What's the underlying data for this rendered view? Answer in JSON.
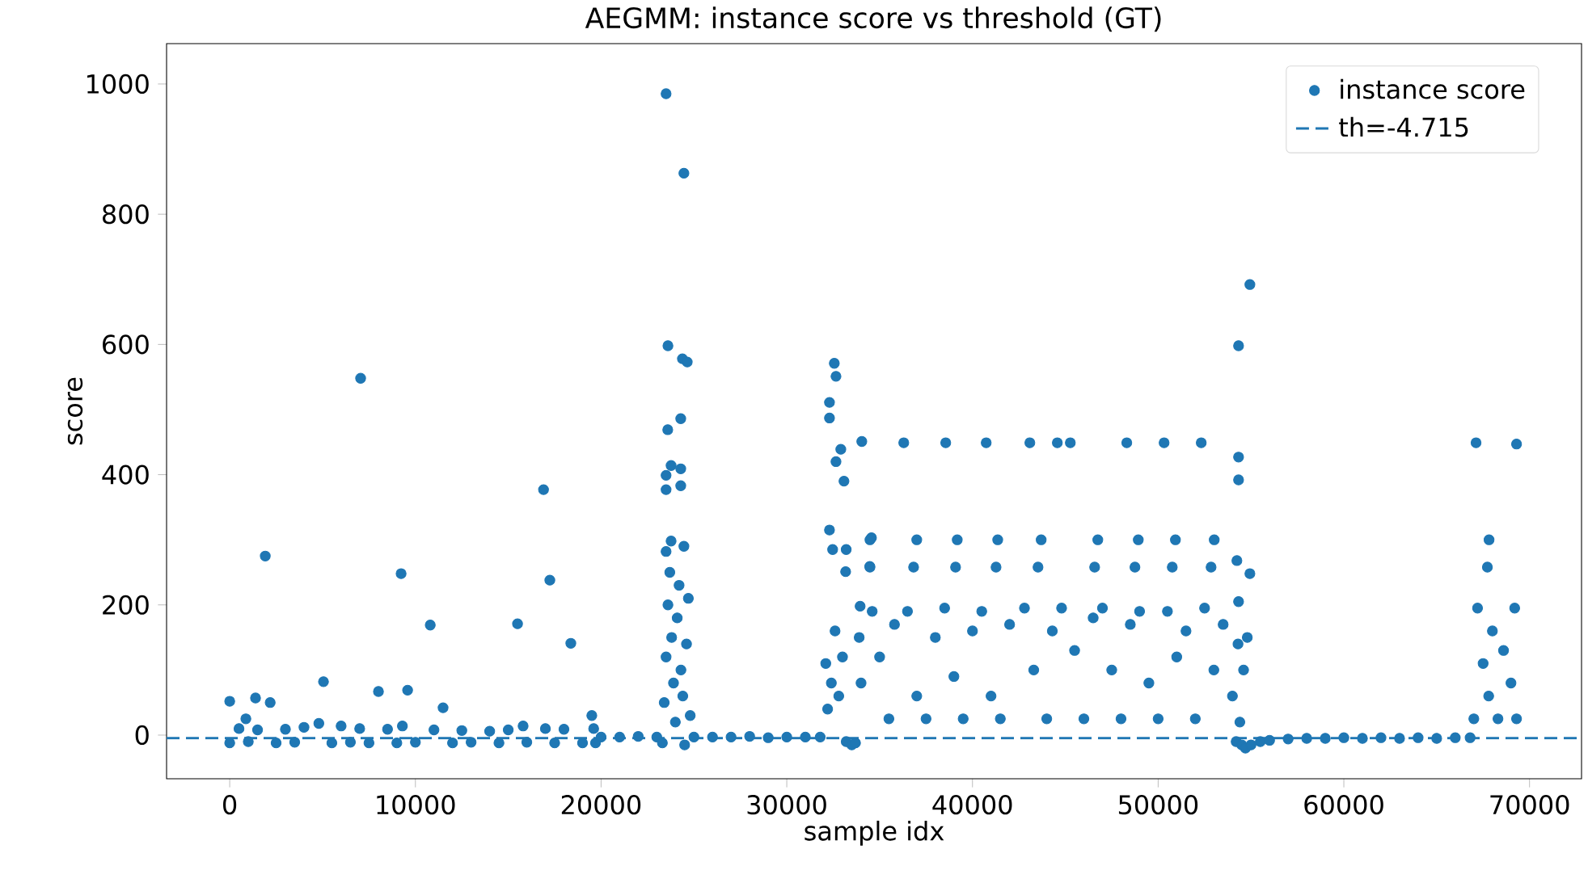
{
  "chart_data": {
    "type": "scatter",
    "title": "AEGMM: instance score vs threshold (GT)",
    "xlabel": "sample idx",
    "ylabel": "score",
    "xlim": [
      -3400,
      72800
    ],
    "ylim": [
      -67,
      1062
    ],
    "xticks": [
      0,
      10000,
      20000,
      30000,
      40000,
      50000,
      60000,
      70000
    ],
    "yticks": [
      0,
      200,
      400,
      600,
      800,
      1000
    ],
    "marker": "circle",
    "legend": "top right",
    "series": [
      {
        "name": "instance score",
        "color": "#1f77b4",
        "x": [
          0,
          870,
          1390,
          1915,
          2180,
          5050,
          7050,
          8010,
          9230,
          9580,
          10800,
          11490,
          15500,
          16900,
          17240,
          18370,
          19500,
          0,
          500,
          1000,
          1500,
          2500,
          3000,
          3500,
          4000,
          4800,
          5500,
          6000,
          6500,
          7000,
          7500,
          8500,
          9000,
          9300,
          10000,
          11000,
          12000,
          12500,
          13000,
          14000,
          14500,
          15000,
          15800,
          16000,
          17000,
          17500,
          18000,
          19000,
          19600,
          19700,
          20000,
          21000,
          22000,
          23000,
          23500,
          24460,
          23600,
          24380,
          24640,
          23590,
          24290,
          23770,
          24290,
          23500,
          23500,
          24290,
          23770,
          24460,
          23500,
          23300,
          23400,
          23500,
          23600,
          23700,
          23800,
          23900,
          24000,
          24100,
          24200,
          24300,
          24400,
          24500,
          24600,
          24700,
          24800,
          25000,
          26000,
          27000,
          28000,
          29000,
          30000,
          31000,
          31800,
          32560,
          32650,
          32300,
          32300,
          32910,
          32650,
          33080,
          32300,
          32470,
          33200,
          33170,
          34560,
          34470,
          33950,
          32100,
          32200,
          32400,
          32600,
          32800,
          33000,
          33200,
          33500,
          33700,
          33900,
          34000,
          34040,
          36300,
          38560,
          40740,
          43090,
          44570,
          45270,
          48310,
          50320,
          52320,
          34480,
          37000,
          39180,
          41360,
          43700,
          46750,
          48930,
          50930,
          53020,
          34480,
          36830,
          39090,
          41270,
          43530,
          46580,
          48750,
          50760,
          52850,
          34600,
          35000,
          35500,
          35800,
          36500,
          37000,
          37500,
          38000,
          38500,
          39000,
          39500,
          40000,
          40500,
          41000,
          41500,
          42000,
          42800,
          43300,
          44000,
          44300,
          44800,
          45500,
          46000,
          46500,
          47000,
          47500,
          48000,
          48500,
          49000,
          49500,
          50000,
          50500,
          51000,
          51500,
          52000,
          52500,
          53000,
          53500,
          54000,
          54200,
          54940,
          54330,
          54330,
          54330,
          54240,
          54940,
          54330,
          54300,
          54400,
          54500,
          54600,
          54700,
          54800,
          55000,
          55500,
          56000,
          57000,
          58000,
          59000,
          60000,
          61000,
          62000,
          63000,
          64000,
          65000,
          66000,
          66800,
          67120,
          69300,
          67820,
          67730,
          67000,
          67200,
          67500,
          67800,
          68000,
          68300,
          68600,
          69000,
          69200,
          69300
        ],
        "values": [
          52,
          25,
          57,
          275,
          50,
          82,
          548,
          67,
          248,
          69,
          169,
          42,
          171,
          377,
          238,
          141,
          30,
          -12,
          10,
          -10,
          8,
          -12,
          9,
          -11,
          12,
          18,
          -12,
          14,
          -11,
          10,
          -12,
          9,
          -12,
          14,
          -11,
          8,
          -12,
          7,
          -11,
          6,
          -12,
          8,
          14,
          -11,
          10,
          -12,
          9,
          -12,
          10,
          -12,
          -3,
          -3,
          -2,
          -3,
          985,
          863,
          598,
          578,
          573,
          469,
          486,
          414,
          409,
          399,
          377,
          383,
          298,
          290,
          282,
          -12,
          50,
          120,
          200,
          250,
          150,
          80,
          20,
          180,
          230,
          100,
          60,
          -15,
          140,
          210,
          30,
          -3,
          -3,
          -3,
          -2,
          -4,
          -3,
          -3,
          -3,
          571,
          551,
          511,
          487,
          439,
          420,
          390,
          315,
          285,
          285,
          251,
          303,
          259,
          198,
          110,
          40,
          80,
          160,
          60,
          120,
          -10,
          -15,
          -12,
          150,
          80,
          451,
          449,
          449,
          449,
          449,
          449,
          449,
          449,
          449,
          449,
          300,
          300,
          300,
          300,
          300,
          300,
          300,
          300,
          300,
          258,
          258,
          258,
          258,
          258,
          258,
          258,
          258,
          258,
          190,
          120,
          25,
          170,
          190,
          60,
          25,
          150,
          195,
          90,
          25,
          160,
          190,
          60,
          25,
          170,
          195,
          100,
          25,
          160,
          195,
          130,
          25,
          180,
          195,
          100,
          25,
          170,
          190,
          80,
          25,
          190,
          120,
          160,
          25,
          195,
          100,
          170,
          60,
          -10,
          692,
          598,
          427,
          392,
          268,
          248,
          205,
          140,
          20,
          -15,
          100,
          -20,
          150,
          -15,
          -10,
          -8,
          -6,
          -5,
          -5,
          -4,
          -5,
          -4,
          -5,
          -4,
          -5,
          -4,
          -4,
          449,
          447,
          300,
          258,
          25,
          195,
          110,
          60,
          160,
          25,
          130,
          80,
          195,
          25
        ]
      }
    ],
    "ref_lines": [
      {
        "axis": "y",
        "value": -4.715,
        "label": "th=-4.715",
        "color": "#1f77b4",
        "line_style": "dashed"
      }
    ]
  }
}
